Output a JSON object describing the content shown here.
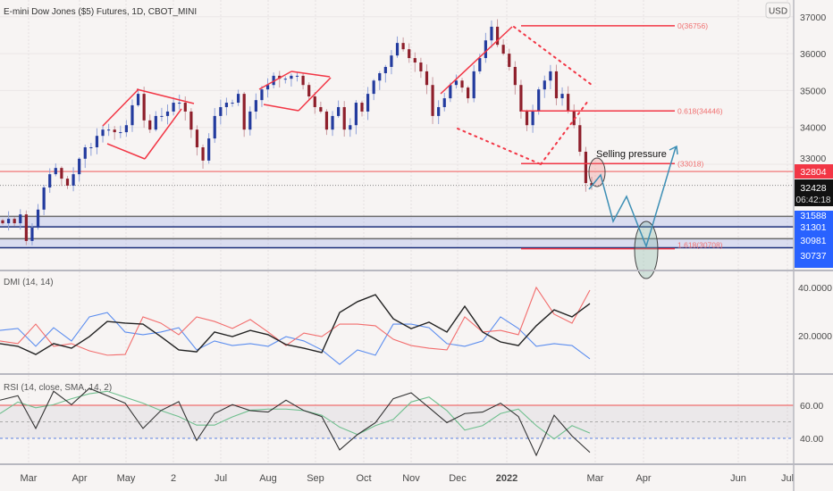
{
  "header": {
    "title": "E-mini Dow Jones ($5) Futures, 1D, CBOT_MINI",
    "currency": "USD"
  },
  "time_axis": {
    "labels": [
      "Mar",
      "Apr",
      "May",
      "2",
      "Jul",
      "Aug",
      "Sep",
      "Oct",
      "Nov",
      "Dec",
      "2022",
      "Mar",
      "Apr",
      "Jun",
      "Jul"
    ]
  },
  "colors": {
    "up": "#233b9e",
    "down": "#8e1f2b",
    "drawing_red": "#f23645",
    "zone_blue": "#2962ff",
    "plus_di": "#5b8def",
    "minus_di": "#f26d6d",
    "adx": "#222222",
    "rsi": "#333333",
    "rsi_sma": "#6fbf8e",
    "background": "#f7f4f3"
  },
  "chart_data": [
    {
      "type": "candlestick",
      "title": "E-mini Dow Jones ($5) Futures, 1D, CBOT_MINI",
      "y_ticks": [
        "37000",
        "36000",
        "35000",
        "34000",
        "33000"
      ],
      "close": [
        31400,
        31520,
        31400,
        31640,
        30920,
        31280,
        31770,
        32370,
        32730,
        32900,
        32610,
        32420,
        32730,
        33150,
        33460,
        33460,
        33770,
        33940,
        33940,
        33870,
        33870,
        34060,
        34600,
        34910,
        34190,
        33940,
        34310,
        34310,
        34430,
        34670,
        34670,
        34430,
        33940,
        33460,
        33100,
        33700,
        34310,
        34550,
        34670,
        34670,
        34910,
        33940,
        34430,
        34740,
        35030,
        35150,
        35400,
        35320,
        35320,
        35400,
        35400,
        35150,
        34840,
        34550,
        34430,
        33940,
        34310,
        34550,
        33940,
        34060,
        34670,
        34430,
        34910,
        35270,
        35470,
        35640,
        35950,
        36290,
        36120,
        35880,
        35760,
        35520,
        35150,
        34310,
        34550,
        34790,
        35150,
        35270,
        35080,
        34790,
        35520,
        35880,
        36360,
        36730,
        36240,
        36000,
        35640,
        35150,
        34430,
        34060,
        34430,
        35030,
        35270,
        35520,
        34790,
        34910,
        34430,
        34060,
        33340,
        32490,
        32428
      ],
      "price_labels": [
        {
          "value": "32804",
          "kind": "alert"
        },
        {
          "value": "32428",
          "kind": "last",
          "countdown": "06:42:18"
        },
        {
          "value": "31588",
          "kind": "zone"
        },
        {
          "value": "31301",
          "kind": "zone"
        },
        {
          "value": "30981",
          "kind": "zone"
        },
        {
          "value": "30737",
          "kind": "zone"
        }
      ],
      "fib_levels": [
        {
          "value": 36756,
          "label": "0(36756)"
        },
        {
          "value": 34446,
          "label": "0.618(34446)"
        },
        {
          "value": 33018,
          "label": "(33018)"
        },
        {
          "value": 30708,
          "label": "1.618(30708)"
        }
      ],
      "annotation": "Selling pressure"
    },
    {
      "type": "line",
      "title": "DMI (14, 14)",
      "y_ticks": [
        "40.0000",
        "20.0000"
      ],
      "series": [
        {
          "color": "#5b8def",
          "values": [
            22.2,
            23.0,
            15.6,
            23.3,
            17.8,
            27.8,
            29.6,
            21.5,
            20.4,
            21.5,
            23.3,
            14.1,
            17.8,
            15.9,
            16.7,
            15.6,
            19.6,
            17.8,
            14.1,
            8.1,
            14.1,
            11.9,
            24.8,
            24.8,
            23.3,
            16.7,
            15.6,
            17.8,
            27.8,
            23.0,
            15.6,
            16.7,
            15.9,
            10.4
          ]
        },
        {
          "color": "#f26d6d",
          "values": [
            17.8,
            16.7,
            24.8,
            15.6,
            16.7,
            13.7,
            11.9,
            12.2,
            27.8,
            25.2,
            20.4,
            27.8,
            25.9,
            23.0,
            26.7,
            21.5,
            15.9,
            21.1,
            19.6,
            24.8,
            24.8,
            24.1,
            18.5,
            15.9,
            14.8,
            14.1,
            27.8,
            21.5,
            22.2,
            20.4,
            40.0,
            28.9,
            25.2,
            38.9
          ]
        },
        {
          "color": "#222222",
          "values": [
            16.7,
            15.6,
            12.2,
            16.7,
            14.8,
            19.6,
            25.9,
            25.2,
            24.8,
            19.6,
            14.1,
            13.3,
            21.5,
            19.6,
            22.2,
            20.4,
            16.3,
            14.8,
            13.0,
            29.6,
            34.1,
            37.0,
            27.0,
            22.9,
            25.6,
            21.5,
            32.2,
            21.5,
            17.4,
            15.9,
            24.1,
            30.7,
            27.8,
            33.3
          ]
        }
      ]
    },
    {
      "type": "line",
      "title": "RSI (14, close, SMA, 14, 2)",
      "y_ticks": [
        "60.00",
        "40.00"
      ],
      "bands": {
        "upper": 60,
        "middle": 50,
        "lower": 40
      },
      "series": [
        {
          "color": "#333333",
          "values": [
            63.1,
            65.8,
            46.0,
            68.5,
            60.4,
            70.3,
            65.8,
            61.3,
            46.0,
            56.8,
            62.2,
            38.7,
            55.0,
            60.4,
            56.8,
            55.9,
            63.1,
            56.8,
            53.2,
            33.0,
            42.3,
            49.5,
            64.0,
            67.6,
            58.6,
            49.5,
            55.0,
            55.9,
            61.3,
            53.2,
            29.7,
            54.0,
            41.4,
            31.5
          ]
        },
        {
          "color": "#6fbf8e",
          "values": [
            55,
            62,
            58.5,
            60.4,
            64,
            67,
            68.5,
            64.9,
            61.3,
            56.8,
            53.2,
            48,
            48,
            53,
            57,
            57.7,
            57.7,
            56.8,
            54,
            46.8,
            42.3,
            47.7,
            51.4,
            62,
            65,
            56.8,
            45,
            47.7,
            55,
            57.7,
            47.7,
            39.6,
            47.7,
            43.2
          ]
        }
      ]
    }
  ]
}
